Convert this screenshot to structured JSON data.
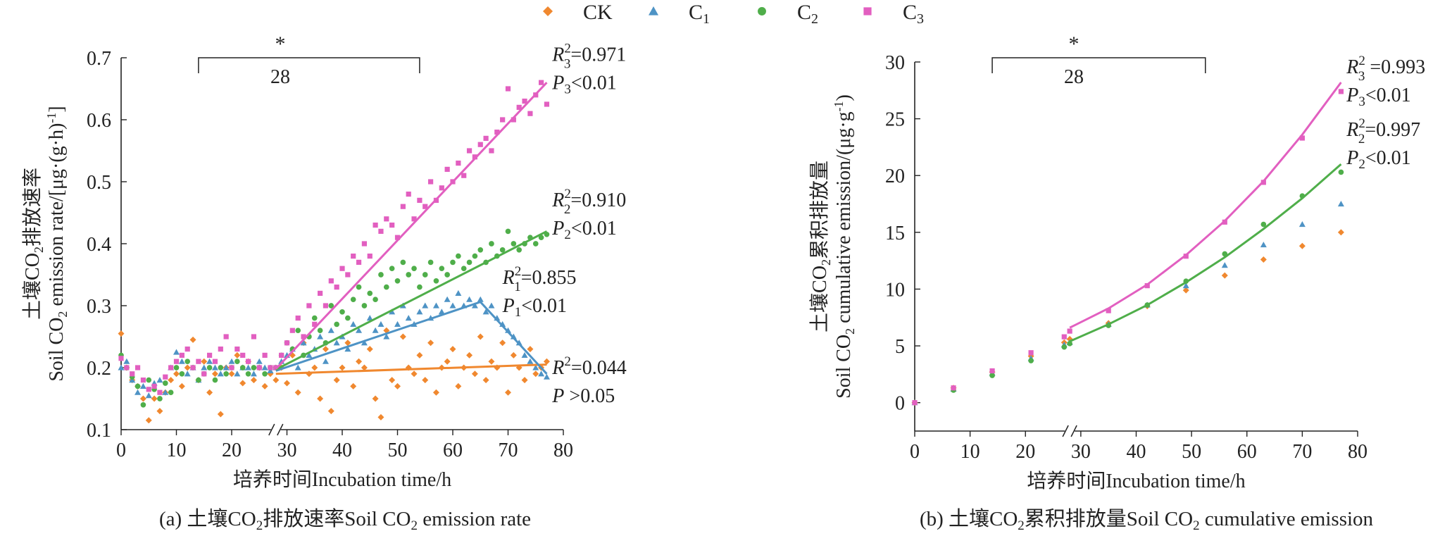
{
  "legend": {
    "items": [
      {
        "key": "CK",
        "label": "CK",
        "sub": "",
        "color": "#f0882f",
        "marker": "diamond"
      },
      {
        "key": "C1",
        "label": "C",
        "sub": "1",
        "color": "#4e93c5",
        "marker": "triangle"
      },
      {
        "key": "C2",
        "label": "C",
        "sub": "2",
        "color": "#4fae4a",
        "marker": "circle"
      },
      {
        "key": "C3",
        "label": "C",
        "sub": "3",
        "color": "#e25fc0",
        "marker": "square"
      }
    ]
  },
  "chart_data": [
    {
      "type": "scatter",
      "panel": "a",
      "caption": {
        "a": "(a) 土壤CO",
        "sub": "2",
        "b": "排放速率Soil CO",
        "sub2": "2",
        "c": " emission rate"
      },
      "xlabel": "培养时间Incubation time/h",
      "ylabel": {
        "cn1": "土壤CO",
        "sub1": "2",
        "cn2": "排放速率",
        "en1": "Soil CO",
        "sub2": "2",
        "en2": " emission rate/[μg·(g·h)",
        "sup": "-1",
        "en3": "]"
      },
      "xlim": [
        0,
        80
      ],
      "ylim": [
        0.1,
        0.7
      ],
      "xticks": [
        "0",
        "10",
        "20",
        "30",
        "40",
        "50",
        "60",
        "70",
        "80"
      ],
      "yticks": [
        "0.1",
        "0.2",
        "0.3",
        "0.4",
        "0.5",
        "0.6",
        "0.7"
      ],
      "axis_break_x": 28,
      "bracket": {
        "x_start": 14,
        "x_end": 54,
        "star": "*",
        "label": "28"
      },
      "fits": [
        {
          "series": "CK",
          "points": [
            [
              28,
              0.19
            ],
            [
              77,
              0.205
            ]
          ]
        },
        {
          "series": "C1",
          "points": [
            [
              28,
              0.195
            ],
            [
              65,
              0.306
            ],
            [
              77,
              0.19
            ]
          ]
        },
        {
          "series": "C2",
          "points": [
            [
              28,
              0.197
            ],
            [
              77,
              0.42
            ]
          ]
        },
        {
          "series": "C3",
          "points": [
            [
              28,
              0.198
            ],
            [
              77,
              0.66
            ]
          ]
        }
      ],
      "annotations": [
        {
          "x": 78,
          "y": 0.695,
          "r": "R",
          "rsub": "3",
          "rsup": "2",
          "rval": "=0.971",
          "p": "P",
          "psub": "3",
          "pval": "<0.01"
        },
        {
          "x": 78,
          "y": 0.46,
          "r": "R",
          "rsub": "2",
          "rsup": "2",
          "rval": "=0.910",
          "p": "P",
          "psub": "2",
          "pval": "<0.01"
        },
        {
          "x": 69,
          "y": 0.335,
          "r": "R",
          "rsub": "1",
          "rsup": "2",
          "rval": "=0.855",
          "p": "P",
          "psub": "1",
          "pval": "<0.01"
        },
        {
          "x": 78,
          "y": 0.19,
          "r": "R",
          "rsub": "",
          "rsup": "2",
          "rval": "=0.044",
          "p": "P",
          "psub": "",
          "pval": " >0.05"
        }
      ],
      "series": [
        {
          "name": "CK",
          "x": [
            0,
            1,
            2,
            3,
            4,
            5,
            6,
            7,
            8,
            9,
            10,
            11,
            12,
            13,
            14,
            15,
            16,
            17,
            18,
            19,
            20,
            21,
            22,
            23,
            24,
            25,
            26,
            27,
            28,
            29,
            30,
            31,
            32,
            33,
            34,
            35,
            36,
            37,
            38,
            39,
            40,
            41,
            42,
            43,
            44,
            45,
            46,
            47,
            48,
            49,
            50,
            51,
            52,
            53,
            54,
            55,
            56,
            57,
            58,
            59,
            60,
            61,
            62,
            63,
            64,
            65,
            66,
            67,
            68,
            69,
            70,
            71,
            72,
            73,
            74,
            75,
            76,
            77
          ],
          "y": [
            0.255,
            0.2,
            0.18,
            0.17,
            0.15,
            0.115,
            0.15,
            0.13,
            0.16,
            0.18,
            0.19,
            0.17,
            0.2,
            0.245,
            0.18,
            0.21,
            0.16,
            0.19,
            0.125,
            0.2,
            0.19,
            0.22,
            0.175,
            0.21,
            0.18,
            0.2,
            0.17,
            0.19,
            0.18,
            0.2,
            0.175,
            0.22,
            0.16,
            0.24,
            0.19,
            0.2,
            0.15,
            0.23,
            0.13,
            0.18,
            0.2,
            0.24,
            0.17,
            0.21,
            0.2,
            0.23,
            0.15,
            0.12,
            0.26,
            0.18,
            0.17,
            0.25,
            0.2,
            0.19,
            0.22,
            0.18,
            0.24,
            0.16,
            0.2,
            0.21,
            0.23,
            0.17,
            0.2,
            0.22,
            0.19,
            0.25,
            0.18,
            0.21,
            0.2,
            0.24,
            0.16,
            0.22,
            0.2,
            0.18,
            0.23,
            0.19,
            0.2,
            0.21
          ]
        },
        {
          "name": "C1",
          "x": [
            0,
            1,
            2,
            3,
            4,
            5,
            6,
            7,
            8,
            9,
            10,
            11,
            12,
            13,
            14,
            15,
            16,
            17,
            18,
            19,
            20,
            21,
            22,
            23,
            24,
            25,
            26,
            27,
            28,
            29,
            30,
            31,
            32,
            33,
            34,
            35,
            36,
            37,
            38,
            39,
            40,
            41,
            42,
            43,
            44,
            45,
            46,
            47,
            48,
            49,
            50,
            51,
            52,
            53,
            54,
            55,
            56,
            57,
            58,
            59,
            60,
            61,
            62,
            63,
            64,
            65,
            66,
            67,
            68,
            69,
            70,
            71,
            72,
            73,
            74,
            75,
            76,
            77
          ],
          "y": [
            0.2,
            0.21,
            0.18,
            0.16,
            0.17,
            0.155,
            0.175,
            0.18,
            0.16,
            0.2,
            0.225,
            0.21,
            0.19,
            0.2,
            0.18,
            0.2,
            0.21,
            0.2,
            0.19,
            0.2,
            0.21,
            0.19,
            0.2,
            0.2,
            0.19,
            0.21,
            0.2,
            0.195,
            0.2,
            0.21,
            0.22,
            0.23,
            0.2,
            0.24,
            0.22,
            0.23,
            0.25,
            0.21,
            0.26,
            0.24,
            0.25,
            0.23,
            0.27,
            0.26,
            0.24,
            0.28,
            0.26,
            0.27,
            0.25,
            0.29,
            0.27,
            0.3,
            0.28,
            0.27,
            0.29,
            0.3,
            0.28,
            0.3,
            0.29,
            0.31,
            0.3,
            0.32,
            0.3,
            0.31,
            0.3,
            0.31,
            0.29,
            0.3,
            0.28,
            0.27,
            0.26,
            0.25,
            0.24,
            0.22,
            0.21,
            0.2,
            0.19,
            0.185
          ]
        },
        {
          "name": "C2",
          "x": [
            0,
            1,
            2,
            3,
            4,
            5,
            6,
            7,
            8,
            9,
            10,
            11,
            12,
            13,
            14,
            15,
            16,
            17,
            18,
            19,
            20,
            21,
            22,
            23,
            24,
            25,
            26,
            27,
            28,
            29,
            30,
            31,
            32,
            33,
            34,
            35,
            36,
            37,
            38,
            39,
            40,
            41,
            42,
            43,
            44,
            45,
            46,
            47,
            48,
            49,
            50,
            51,
            52,
            53,
            54,
            55,
            56,
            57,
            58,
            59,
            60,
            61,
            62,
            63,
            64,
            65,
            66,
            67,
            68,
            69,
            70,
            71,
            72,
            73,
            74,
            75,
            76,
            77
          ],
          "y": [
            0.22,
            0.2,
            0.185,
            0.17,
            0.14,
            0.18,
            0.165,
            0.15,
            0.175,
            0.16,
            0.2,
            0.19,
            0.21,
            0.2,
            0.18,
            0.19,
            0.2,
            0.18,
            0.2,
            0.19,
            0.2,
            0.21,
            0.2,
            0.19,
            0.2,
            0.2,
            0.19,
            0.2,
            0.2,
            0.22,
            0.24,
            0.23,
            0.26,
            0.22,
            0.25,
            0.28,
            0.26,
            0.24,
            0.3,
            0.27,
            0.29,
            0.28,
            0.31,
            0.33,
            0.3,
            0.32,
            0.31,
            0.35,
            0.33,
            0.36,
            0.34,
            0.37,
            0.35,
            0.36,
            0.33,
            0.35,
            0.37,
            0.34,
            0.36,
            0.35,
            0.37,
            0.38,
            0.36,
            0.37,
            0.38,
            0.39,
            0.37,
            0.4,
            0.38,
            0.39,
            0.42,
            0.4,
            0.39,
            0.4,
            0.41,
            0.4,
            0.41,
            0.415
          ]
        },
        {
          "name": "C3",
          "x": [
            0,
            1,
            2,
            3,
            4,
            5,
            6,
            7,
            8,
            9,
            10,
            11,
            12,
            13,
            14,
            15,
            16,
            17,
            18,
            19,
            20,
            21,
            22,
            23,
            24,
            25,
            26,
            27,
            28,
            29,
            30,
            31,
            32,
            33,
            34,
            35,
            36,
            37,
            38,
            39,
            40,
            41,
            42,
            43,
            44,
            45,
            46,
            47,
            48,
            49,
            50,
            51,
            52,
            53,
            54,
            55,
            56,
            57,
            58,
            59,
            60,
            61,
            62,
            63,
            64,
            65,
            66,
            67,
            68,
            69,
            70,
            71,
            72,
            73,
            74,
            75,
            76,
            77
          ],
          "y": [
            0.215,
            0.2,
            0.19,
            0.2,
            0.18,
            0.165,
            0.17,
            0.16,
            0.185,
            0.2,
            0.21,
            0.22,
            0.23,
            0.2,
            0.21,
            0.19,
            0.22,
            0.21,
            0.23,
            0.25,
            0.2,
            0.23,
            0.22,
            0.21,
            0.25,
            0.2,
            0.22,
            0.2,
            0.2,
            0.22,
            0.24,
            0.26,
            0.28,
            0.25,
            0.3,
            0.27,
            0.32,
            0.3,
            0.34,
            0.33,
            0.36,
            0.35,
            0.38,
            0.37,
            0.4,
            0.38,
            0.43,
            0.42,
            0.44,
            0.43,
            0.41,
            0.46,
            0.48,
            0.44,
            0.47,
            0.46,
            0.5,
            0.47,
            0.49,
            0.52,
            0.5,
            0.53,
            0.51,
            0.55,
            0.54,
            0.56,
            0.57,
            0.55,
            0.58,
            0.6,
            0.65,
            0.6,
            0.62,
            0.63,
            0.61,
            0.64,
            0.66,
            0.625
          ]
        }
      ]
    },
    {
      "type": "scatter",
      "panel": "b",
      "caption": {
        "a": "(b) 土壤CO",
        "sub": "2",
        "b": "累积排放量Soil  CO",
        "sub2": "2",
        "c": "  cumulative emission"
      },
      "xlabel": "培养时间Incubation time/h",
      "ylabel": {
        "cn1": "土壤CO",
        "sub1": "2",
        "cn2": "累积排放量",
        "en1": "Soil CO",
        "sub2": "2",
        "en2": "  cumulative  emission/(μg·g",
        "sup": "-1",
        "en3": ")"
      },
      "xlim": [
        0,
        80
      ],
      "ylim": [
        -2.5,
        30
      ],
      "xticks": [
        "0",
        "10",
        "20",
        "30",
        "40",
        "50",
        "60",
        "70",
        "80"
      ],
      "yticks": [
        "0",
        "5",
        "10",
        "15",
        "20",
        "25",
        "30"
      ],
      "ytick_values": [
        0,
        5,
        10,
        15,
        20,
        25,
        30
      ],
      "axis_break_x": 28,
      "bracket": {
        "x_start": 14,
        "x_end": 52.5,
        "star": "*",
        "label": "28"
      },
      "annotations": [
        {
          "x": 78,
          "y": 29.0,
          "r": "R",
          "rsub": "3",
          "rsup": "2",
          "rval": " =0.993",
          "p": "P",
          "psub": "3",
          "pval": "<0.01"
        },
        {
          "x": 78,
          "y": 23.5,
          "r": "R",
          "rsub": "2",
          "rsup": "2",
          "rval": "=0.997",
          "p": "P",
          "psub": "2",
          "pval": "<0.01"
        }
      ],
      "fits": [
        {
          "series": "C3",
          "x": [
            28,
            35,
            42,
            49,
            56,
            63,
            70,
            77
          ],
          "y": [
            6.6,
            8.3,
            10.4,
            13.0,
            16.0,
            19.5,
            23.6,
            28.2
          ]
        },
        {
          "series": "C2",
          "x": [
            28,
            35,
            42,
            49,
            56,
            63,
            70,
            77
          ],
          "y": [
            5.4,
            6.9,
            8.6,
            10.6,
            12.8,
            15.3,
            18.0,
            21.0
          ]
        }
      ],
      "series": [
        {
          "name": "CK",
          "x": [
            0,
            7,
            14,
            21,
            27,
            28,
            35,
            42,
            49,
            56,
            63,
            70,
            77
          ],
          "y": [
            0,
            1.3,
            2.7,
            4.1,
            5.3,
            5.6,
            7.0,
            8.5,
            9.9,
            11.2,
            12.6,
            13.8,
            15.0
          ]
        },
        {
          "name": "C1",
          "x": [
            0,
            7,
            14,
            21,
            27,
            28,
            35,
            42,
            49,
            56,
            63,
            70,
            77
          ],
          "y": [
            0,
            1.2,
            2.6,
            3.9,
            5.1,
            5.3,
            6.9,
            8.6,
            10.3,
            12.1,
            13.9,
            15.7,
            17.5
          ]
        },
        {
          "name": "C2",
          "x": [
            0,
            7,
            14,
            21,
            27,
            28,
            35,
            42,
            49,
            56,
            63,
            70,
            77
          ],
          "y": [
            0,
            1.1,
            2.4,
            3.7,
            4.9,
            5.2,
            6.8,
            8.6,
            10.7,
            13.1,
            15.7,
            18.2,
            20.3
          ]
        },
        {
          "name": "C3",
          "x": [
            0,
            7,
            14,
            21,
            27,
            28,
            35,
            42,
            49,
            56,
            63,
            70,
            77
          ],
          "y": [
            0,
            1.3,
            2.8,
            4.4,
            5.8,
            6.3,
            8.1,
            10.3,
            12.9,
            15.9,
            19.4,
            23.3,
            27.4
          ]
        }
      ]
    }
  ]
}
